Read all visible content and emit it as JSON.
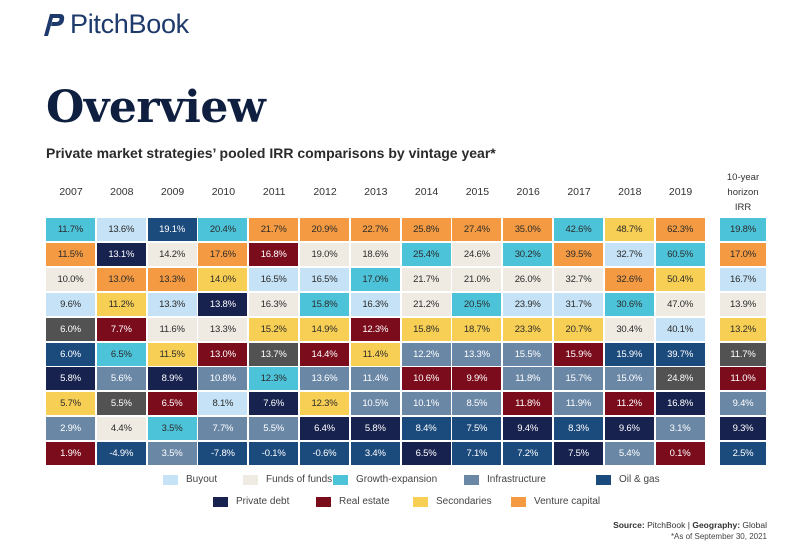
{
  "brand": {
    "name": "PitchBook"
  },
  "title": "Overview",
  "subtitle": "Private market strategies’ pooled IRR comparisons by vintage year*",
  "source": {
    "source_label": "Source:",
    "source_value": "PitchBook",
    "separator": "|",
    "geo_label": "Geography:",
    "geo_value": "Global"
  },
  "footnote": "*As of September 30, 2021",
  "colors": {
    "Buyout": "#c5e2f6",
    "Funds of funds": "#efebe3",
    "Growth-expansion": "#4dc3d9",
    "Infrastructure": "#6a87a6",
    "Oil & gas": "#1b4a7c",
    "Private debt": "#17224f",
    "Real estate": "#7a0c1c",
    "Secondaries": "#f7cf55",
    "Venture capital": "#f39a42",
    "Other": "#525252"
  },
  "chart_data": {
    "type": "table",
    "title": "Private market strategies’ pooled IRR comparisons by vintage year*",
    "columns": [
      "2007",
      "2008",
      "2009",
      "2010",
      "2011",
      "2012",
      "2013",
      "2014",
      "2015",
      "2016",
      "2017",
      "2018",
      "2019"
    ],
    "horizon_label": "10-year\nhorizon\nIRR",
    "legend": [
      "Buyout",
      "Funds of funds",
      "Growth-expansion",
      "Infrastructure",
      "Oil & gas",
      "Private debt",
      "Real estate",
      "Secondaries",
      "Venture capital"
    ],
    "ranks": [
      [
        [
          "11.7%",
          "Growth-expansion"
        ],
        [
          "13.6%",
          "Buyout"
        ],
        [
          "19.1%",
          "Oil & gas"
        ],
        [
          "20.4%",
          "Growth-expansion"
        ],
        [
          "21.7%",
          "Venture capital"
        ],
        [
          "20.9%",
          "Venture capital"
        ],
        [
          "22.7%",
          "Venture capital"
        ],
        [
          "25.8%",
          "Venture capital"
        ],
        [
          "27.4%",
          "Venture capital"
        ],
        [
          "35.0%",
          "Venture capital"
        ],
        [
          "42.6%",
          "Growth-expansion"
        ],
        [
          "48.7%",
          "Secondaries"
        ],
        [
          "62.3%",
          "Venture capital"
        ]
      ],
      [
        [
          "11.5%",
          "Venture capital"
        ],
        [
          "13.1%",
          "Private debt"
        ],
        [
          "14.2%",
          "Funds of funds"
        ],
        [
          "17.6%",
          "Venture capital"
        ],
        [
          "16.8%",
          "Real estate"
        ],
        [
          "19.0%",
          "Funds of funds"
        ],
        [
          "18.6%",
          "Funds of funds"
        ],
        [
          "25.4%",
          "Growth-expansion"
        ],
        [
          "24.6%",
          "Funds of funds"
        ],
        [
          "30.2%",
          "Growth-expansion"
        ],
        [
          "39.5%",
          "Venture capital"
        ],
        [
          "32.7%",
          "Buyout"
        ],
        [
          "60.5%",
          "Growth-expansion"
        ]
      ],
      [
        [
          "10.0%",
          "Funds of funds"
        ],
        [
          "13.0%",
          "Venture capital"
        ],
        [
          "13.3%",
          "Venture capital"
        ],
        [
          "14.0%",
          "Secondaries"
        ],
        [
          "16.5%",
          "Buyout"
        ],
        [
          "16.5%",
          "Buyout"
        ],
        [
          "17.0%",
          "Growth-expansion"
        ],
        [
          "21.7%",
          "Funds of funds"
        ],
        [
          "21.0%",
          "Funds of funds"
        ],
        [
          "26.0%",
          "Funds of funds"
        ],
        [
          "32.7%",
          "Funds of funds"
        ],
        [
          "32.6%",
          "Venture capital"
        ],
        [
          "50.4%",
          "Secondaries"
        ]
      ],
      [
        [
          "9.6%",
          "Buyout"
        ],
        [
          "11.2%",
          "Secondaries"
        ],
        [
          "13.3%",
          "Buyout"
        ],
        [
          "13.8%",
          "Private debt"
        ],
        [
          "16.3%",
          "Funds of funds"
        ],
        [
          "15.8%",
          "Growth-expansion"
        ],
        [
          "16.3%",
          "Buyout"
        ],
        [
          "21.2%",
          "Funds of funds"
        ],
        [
          "20.5%",
          "Growth-expansion"
        ],
        [
          "23.9%",
          "Buyout"
        ],
        [
          "31.7%",
          "Buyout"
        ],
        [
          "30.6%",
          "Growth-expansion"
        ],
        [
          "47.0%",
          "Funds of funds"
        ]
      ],
      [
        [
          "6.0%",
          "Other"
        ],
        [
          "7.7%",
          "Real estate"
        ],
        [
          "11.6%",
          "Funds of funds"
        ],
        [
          "13.3%",
          "Funds of funds"
        ],
        [
          "15.2%",
          "Secondaries"
        ],
        [
          "14.9%",
          "Secondaries"
        ],
        [
          "12.3%",
          "Real estate"
        ],
        [
          "15.8%",
          "Secondaries"
        ],
        [
          "18.7%",
          "Secondaries"
        ],
        [
          "23.3%",
          "Secondaries"
        ],
        [
          "20.7%",
          "Secondaries"
        ],
        [
          "30.4%",
          "Funds of funds"
        ],
        [
          "40.1%",
          "Buyout"
        ]
      ],
      [
        [
          "6.0%",
          "Oil & gas"
        ],
        [
          "6.5%",
          "Growth-expansion"
        ],
        [
          "11.5%",
          "Secondaries"
        ],
        [
          "13.0%",
          "Real estate"
        ],
        [
          "13.7%",
          "Other"
        ],
        [
          "14.4%",
          "Real estate"
        ],
        [
          "11.4%",
          "Secondaries"
        ],
        [
          "12.2%",
          "Infrastructure"
        ],
        [
          "13.3%",
          "Infrastructure"
        ],
        [
          "15.5%",
          "Infrastructure"
        ],
        [
          "15.9%",
          "Real estate"
        ],
        [
          "15.9%",
          "Oil & gas"
        ],
        [
          "39.7%",
          "Oil & gas"
        ]
      ],
      [
        [
          "5.8%",
          "Private debt"
        ],
        [
          "5.6%",
          "Infrastructure"
        ],
        [
          "8.9%",
          "Private debt"
        ],
        [
          "10.8%",
          "Infrastructure"
        ],
        [
          "12.3%",
          "Growth-expansion"
        ],
        [
          "13.6%",
          "Infrastructure"
        ],
        [
          "11.4%",
          "Infrastructure"
        ],
        [
          "10.6%",
          "Real estate"
        ],
        [
          "9.9%",
          "Real estate"
        ],
        [
          "11.8%",
          "Infrastructure"
        ],
        [
          "15.7%",
          "Infrastructure"
        ],
        [
          "15.0%",
          "Infrastructure"
        ],
        [
          "24.8%",
          "Other"
        ]
      ],
      [
        [
          "5.7%",
          "Secondaries"
        ],
        [
          "5.5%",
          "Other"
        ],
        [
          "6.5%",
          "Real estate"
        ],
        [
          "8.1%",
          "Buyout"
        ],
        [
          "7.6%",
          "Private debt"
        ],
        [
          "12.3%",
          "Secondaries"
        ],
        [
          "10.5%",
          "Infrastructure"
        ],
        [
          "10.1%",
          "Infrastructure"
        ],
        [
          "8.5%",
          "Infrastructure"
        ],
        [
          "11.8%",
          "Real estate"
        ],
        [
          "11.9%",
          "Infrastructure"
        ],
        [
          "11.2%",
          "Real estate"
        ],
        [
          "16.8%",
          "Private debt"
        ]
      ],
      [
        [
          "2.9%",
          "Infrastructure"
        ],
        [
          "4.4%",
          "Funds of funds"
        ],
        [
          "3.5%",
          "Growth-expansion"
        ],
        [
          "7.7%",
          "Infrastructure"
        ],
        [
          "5.5%",
          "Infrastructure"
        ],
        [
          "6.4%",
          "Private debt"
        ],
        [
          "5.8%",
          "Private debt"
        ],
        [
          "8.4%",
          "Oil & gas"
        ],
        [
          "7.5%",
          "Oil & gas"
        ],
        [
          "9.4%",
          "Private debt"
        ],
        [
          "8.3%",
          "Oil & gas"
        ],
        [
          "9.6%",
          "Private debt"
        ],
        [
          "3.1%",
          "Infrastructure"
        ]
      ],
      [
        [
          "1.9%",
          "Real estate"
        ],
        [
          "-4.9%",
          "Oil & gas"
        ],
        [
          "3.5%",
          "Infrastructure"
        ],
        [
          "-7.8%",
          "Oil & gas"
        ],
        [
          "-0.1%",
          "Oil & gas"
        ],
        [
          "-0.6%",
          "Oil & gas"
        ],
        [
          "3.4%",
          "Oil & gas"
        ],
        [
          "6.5%",
          "Private debt"
        ],
        [
          "7.1%",
          "Oil & gas"
        ],
        [
          "7.2%",
          "Oil & gas"
        ],
        [
          "7.5%",
          "Private debt"
        ],
        [
          "5.4%",
          "Infrastructure"
        ],
        [
          "0.1%",
          "Real estate"
        ]
      ]
    ],
    "horizon": [
      [
        "19.8%",
        "Growth-expansion"
      ],
      [
        "17.0%",
        "Venture capital"
      ],
      [
        "16.7%",
        "Buyout"
      ],
      [
        "13.9%",
        "Funds of funds"
      ],
      [
        "13.2%",
        "Secondaries"
      ],
      [
        "11.7%",
        "Other"
      ],
      [
        "11.0%",
        "Real estate"
      ],
      [
        "9.4%",
        "Infrastructure"
      ],
      [
        "9.3%",
        "Private debt"
      ],
      [
        "2.5%",
        "Oil & gas"
      ]
    ]
  }
}
